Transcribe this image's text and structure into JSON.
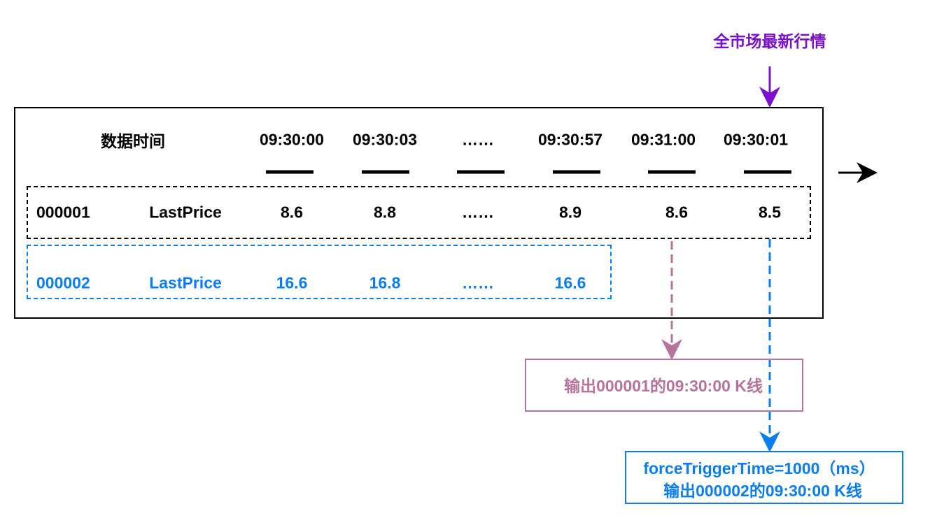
{
  "colors": {
    "title": "#7A0FD0",
    "pink": "#B5739D",
    "blue": "#0A7EF0",
    "black": "#000000"
  },
  "title": "全市场最新行情",
  "header": {
    "label": "数据时间",
    "times": [
      "09:30:00",
      "09:30:03",
      "……",
      "09:30:57",
      "09:31:00",
      "09:30:01"
    ]
  },
  "row1": {
    "code": "000001",
    "field": "LastPrice",
    "values": [
      "8.6",
      "8.8",
      "……",
      "8.9",
      "8.6",
      "8.5"
    ]
  },
  "row2": {
    "code": "000002",
    "field": "LastPrice",
    "values": [
      "16.6",
      "16.8",
      "……",
      "16.6"
    ]
  },
  "output1": "输出000001的09:30:00 K线",
  "output2": {
    "line1": "forceTriggerTime=1000（ms）",
    "line2": "输出000002的09:30:00 K线"
  }
}
